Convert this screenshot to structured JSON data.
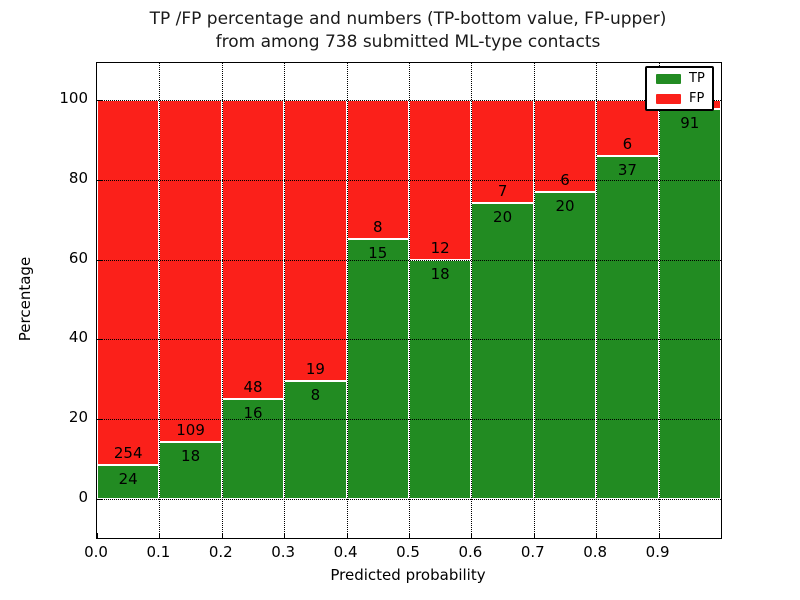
{
  "title": {
    "line1": "TP /FP percentage and numbers (TP-bottom value, FP-upper)",
    "line2": "from among 738 submitted ML-type contacts"
  },
  "chart_data": {
    "type": "bar",
    "stacked": true,
    "normalized_to": "percentage",
    "title": "TP /FP percentage and numbers (TP-bottom value, FP-upper)\nfrom among 738 submitted ML-type contacts",
    "total_contacts_in_title": 738,
    "xlabel": "Predicted probability",
    "ylabel": "Percentage",
    "x_tick_labels": [
      "0.0",
      "0.1",
      "0.2",
      "0.3",
      "0.4",
      "0.5",
      "0.6",
      "0.7",
      "0.8",
      "0.9"
    ],
    "y_ticks": [
      0,
      20,
      40,
      60,
      80,
      100
    ],
    "xlim": [
      0.0,
      1.0
    ],
    "ylim": [
      -10,
      110
    ],
    "bin_width": 0.1,
    "grid": "dotted black, horizontal at y ticks and vertical at x ticks",
    "colors": {
      "tp": "#228b22",
      "fp": "#fb201a",
      "bar_edge": "#ffffff",
      "frame": "#000000"
    },
    "legend": {
      "position": "upper right",
      "entries": [
        {
          "label": "TP",
          "color": "#228b22"
        },
        {
          "label": "FP",
          "color": "#fb201a"
        }
      ]
    },
    "bars": [
      {
        "bin_start": 0.0,
        "tp_count": 24,
        "fp_count": 254,
        "tp_pct": 8.63,
        "tp_label": "24",
        "fp_label": "254"
      },
      {
        "bin_start": 0.1,
        "tp_count": 18,
        "fp_count": 109,
        "tp_pct": 14.17,
        "tp_label": "18",
        "fp_label": "109"
      },
      {
        "bin_start": 0.2,
        "tp_count": 16,
        "fp_count": 48,
        "tp_pct": 25.0,
        "tp_label": "16",
        "fp_label": "48"
      },
      {
        "bin_start": 0.3,
        "tp_count": 8,
        "fp_count": 19,
        "tp_pct": 29.63,
        "tp_label": "8",
        "fp_label": "19"
      },
      {
        "bin_start": 0.4,
        "tp_count": 15,
        "fp_count": 8,
        "tp_pct": 65.22,
        "tp_label": "15",
        "fp_label": "8"
      },
      {
        "bin_start": 0.5,
        "tp_count": 18,
        "fp_count": 12,
        "tp_pct": 60.0,
        "tp_label": "18",
        "fp_label": "12"
      },
      {
        "bin_start": 0.6,
        "tp_count": 20,
        "fp_count": 7,
        "tp_pct": 74.07,
        "tp_label": "20",
        "fp_label": "7"
      },
      {
        "bin_start": 0.7,
        "tp_count": 20,
        "fp_count": 6,
        "tp_pct": 76.92,
        "tp_label": "20",
        "fp_label": "6"
      },
      {
        "bin_start": 0.8,
        "tp_count": 37,
        "fp_count": 6,
        "tp_pct": 86.05,
        "tp_label": "37",
        "fp_label": "6"
      },
      {
        "bin_start": 0.9,
        "tp_count": 91,
        "fp_count": 2,
        "tp_pct": 97.85,
        "tp_label": "91",
        "fp_label": ""
      }
    ]
  }
}
